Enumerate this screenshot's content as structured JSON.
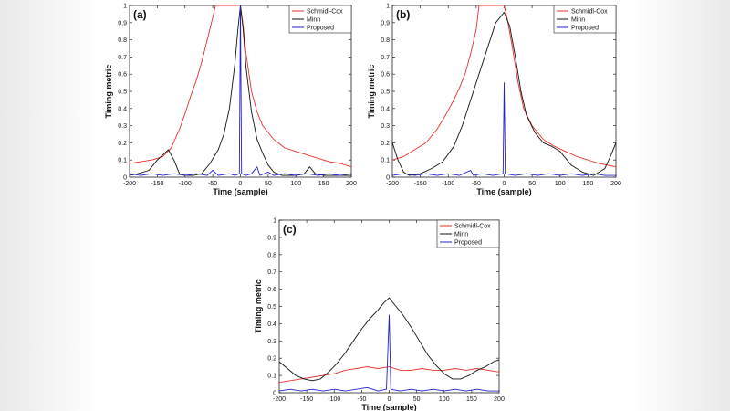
{
  "chart_data": [
    {
      "type": "line",
      "panel_label": "(a)",
      "xlabel": "Time (sample)",
      "ylabel": "Timing metric",
      "xlim": [
        -200,
        200
      ],
      "ylim": [
        0,
        1
      ],
      "xticks": [
        -200,
        -150,
        -100,
        -50,
        0,
        50,
        100,
        150,
        200
      ],
      "yticks": [
        0,
        0.1,
        0.2,
        0.3,
        0.4,
        0.5,
        0.6,
        0.7,
        0.8,
        0.9,
        1
      ],
      "legend_position": "top-right",
      "series": [
        {
          "name": "Schmidl-Cox",
          "color": "#e8302a",
          "points": [
            [
              -200,
              0.08
            ],
            [
              -180,
              0.09
            ],
            [
              -160,
              0.1
            ],
            [
              -140,
              0.12
            ],
            [
              -125,
              0.17
            ],
            [
              -110,
              0.28
            ],
            [
              -100,
              0.37
            ],
            [
              -90,
              0.47
            ],
            [
              -80,
              0.56
            ],
            [
              -70,
              0.67
            ],
            [
              -60,
              0.8
            ],
            [
              -50,
              0.93
            ],
            [
              -45,
              1.0
            ],
            [
              -40,
              1.0
            ],
            [
              -20,
              1.0
            ],
            [
              -5,
              1.0
            ],
            [
              0,
              1.0
            ],
            [
              5,
              0.88
            ],
            [
              10,
              0.72
            ],
            [
              20,
              0.5
            ],
            [
              30,
              0.38
            ],
            [
              40,
              0.3
            ],
            [
              60,
              0.22
            ],
            [
              80,
              0.17
            ],
            [
              100,
              0.15
            ],
            [
              120,
              0.13
            ],
            [
              140,
              0.11
            ],
            [
              160,
              0.09
            ],
            [
              180,
              0.08
            ],
            [
              200,
              0.06
            ]
          ]
        },
        {
          "name": "Minn",
          "color": "#111111",
          "points": [
            [
              -200,
              0.01
            ],
            [
              -185,
              0.02
            ],
            [
              -165,
              0.04
            ],
            [
              -150,
              0.1
            ],
            [
              -130,
              0.16
            ],
            [
              -120,
              0.1
            ],
            [
              -110,
              0.02
            ],
            [
              -100,
              0.01
            ],
            [
              -85,
              0.01
            ],
            [
              -70,
              0.02
            ],
            [
              -55,
              0.08
            ],
            [
              -40,
              0.16
            ],
            [
              -30,
              0.25
            ],
            [
              -20,
              0.4
            ],
            [
              -10,
              0.66
            ],
            [
              -5,
              0.85
            ],
            [
              0,
              1.0
            ],
            [
              5,
              0.86
            ],
            [
              10,
              0.64
            ],
            [
              20,
              0.38
            ],
            [
              30,
              0.22
            ],
            [
              40,
              0.14
            ],
            [
              50,
              0.07
            ],
            [
              60,
              0.03
            ],
            [
              75,
              0.01
            ],
            [
              100,
              0.01
            ],
            [
              115,
              0.02
            ],
            [
              125,
              0.06
            ],
            [
              135,
              0.02
            ],
            [
              150,
              0.01
            ],
            [
              200,
              0.01
            ]
          ]
        },
        {
          "name": "Proposed",
          "color": "#2222cc",
          "points": [
            [
              -200,
              0.02
            ],
            [
              -180,
              0.01
            ],
            [
              -160,
              0.02
            ],
            [
              -140,
              0.01
            ],
            [
              -120,
              0.02
            ],
            [
              -100,
              0.01
            ],
            [
              -80,
              0.02
            ],
            [
              -60,
              0.01
            ],
            [
              -50,
              0.04
            ],
            [
              -40,
              0.01
            ],
            [
              -20,
              0.02
            ],
            [
              -10,
              0.01
            ],
            [
              -2,
              0.02
            ],
            [
              0,
              1.0
            ],
            [
              2,
              0.02
            ],
            [
              10,
              0.01
            ],
            [
              20,
              0.02
            ],
            [
              30,
              0.06
            ],
            [
              35,
              0.01
            ],
            [
              50,
              0.03
            ],
            [
              60,
              0.01
            ],
            [
              80,
              0.02
            ],
            [
              100,
              0.01
            ],
            [
              120,
              0.02
            ],
            [
              140,
              0.01
            ],
            [
              160,
              0.02
            ],
            [
              180,
              0.01
            ],
            [
              200,
              0.02
            ]
          ]
        }
      ]
    },
    {
      "type": "line",
      "panel_label": "(b)",
      "xlabel": "Time (sample)",
      "ylabel": "Timing metric",
      "xlim": [
        -200,
        200
      ],
      "ylim": [
        0,
        1
      ],
      "xticks": [
        -200,
        -150,
        -100,
        -50,
        0,
        50,
        100,
        150,
        200
      ],
      "yticks": [
        0,
        0.1,
        0.2,
        0.3,
        0.4,
        0.5,
        0.6,
        0.7,
        0.8,
        0.9,
        1
      ],
      "legend_position": "top-right",
      "series": [
        {
          "name": "Schmidl-Cox",
          "color": "#e8302a",
          "points": [
            [
              -200,
              0.1
            ],
            [
              -180,
              0.12
            ],
            [
              -160,
              0.16
            ],
            [
              -140,
              0.2
            ],
            [
              -120,
              0.28
            ],
            [
              -105,
              0.36
            ],
            [
              -90,
              0.45
            ],
            [
              -80,
              0.52
            ],
            [
              -70,
              0.6
            ],
            [
              -60,
              0.72
            ],
            [
              -50,
              0.86
            ],
            [
              -45,
              1.0
            ],
            [
              -40,
              1.0
            ],
            [
              -20,
              1.0
            ],
            [
              0,
              1.0
            ],
            [
              5,
              0.93
            ],
            [
              15,
              0.75
            ],
            [
              25,
              0.55
            ],
            [
              35,
              0.4
            ],
            [
              50,
              0.3
            ],
            [
              70,
              0.22
            ],
            [
              90,
              0.18
            ],
            [
              110,
              0.15
            ],
            [
              130,
              0.12
            ],
            [
              150,
              0.1
            ],
            [
              170,
              0.08
            ],
            [
              200,
              0.06
            ]
          ]
        },
        {
          "name": "Minn",
          "color": "#111111",
          "points": [
            [
              -200,
              0.2
            ],
            [
              -190,
              0.1
            ],
            [
              -180,
              0.03
            ],
            [
              -170,
              0.01
            ],
            [
              -150,
              0.02
            ],
            [
              -130,
              0.05
            ],
            [
              -110,
              0.09
            ],
            [
              -90,
              0.18
            ],
            [
              -75,
              0.3
            ],
            [
              -60,
              0.45
            ],
            [
              -45,
              0.6
            ],
            [
              -30,
              0.75
            ],
            [
              -15,
              0.9
            ],
            [
              0,
              0.96
            ],
            [
              10,
              0.88
            ],
            [
              20,
              0.7
            ],
            [
              30,
              0.5
            ],
            [
              40,
              0.36
            ],
            [
              55,
              0.26
            ],
            [
              70,
              0.2
            ],
            [
              85,
              0.18
            ],
            [
              100,
              0.15
            ],
            [
              120,
              0.07
            ],
            [
              140,
              0.03
            ],
            [
              160,
              0.01
            ],
            [
              180,
              0.05
            ],
            [
              190,
              0.12
            ],
            [
              200,
              0.2
            ]
          ]
        },
        {
          "name": "Proposed",
          "color": "#2222cc",
          "points": [
            [
              -200,
              0.01
            ],
            [
              -180,
              0.02
            ],
            [
              -160,
              0.01
            ],
            [
              -140,
              0.02
            ],
            [
              -120,
              0.01
            ],
            [
              -100,
              0.02
            ],
            [
              -80,
              0.01
            ],
            [
              -60,
              0.04
            ],
            [
              -55,
              0.01
            ],
            [
              -40,
              0.02
            ],
            [
              -20,
              0.01
            ],
            [
              -2,
              0.02
            ],
            [
              0,
              0.55
            ],
            [
              2,
              0.02
            ],
            [
              20,
              0.01
            ],
            [
              40,
              0.02
            ],
            [
              60,
              0.01
            ],
            [
              80,
              0.02
            ],
            [
              100,
              0.01
            ],
            [
              120,
              0.02
            ],
            [
              140,
              0.01
            ],
            [
              160,
              0.02
            ],
            [
              180,
              0.01
            ],
            [
              200,
              0.01
            ]
          ]
        }
      ]
    },
    {
      "type": "line",
      "panel_label": "(c)",
      "xlabel": "Time (sample)",
      "ylabel": "Timing metric",
      "xlim": [
        -200,
        200
      ],
      "ylim": [
        0,
        1
      ],
      "xticks": [
        -200,
        -150,
        -100,
        -50,
        0,
        50,
        100,
        150,
        200
      ],
      "yticks": [
        0,
        0.1,
        0.2,
        0.3,
        0.4,
        0.5,
        0.6,
        0.7,
        0.8,
        0.9,
        1
      ],
      "legend_position": "top-right",
      "series": [
        {
          "name": "Schmidl-Cox",
          "color": "#e8302a",
          "points": [
            [
              -200,
              0.06
            ],
            [
              -180,
              0.07
            ],
            [
              -160,
              0.08
            ],
            [
              -140,
              0.09
            ],
            [
              -120,
              0.1
            ],
            [
              -100,
              0.11
            ],
            [
              -80,
              0.13
            ],
            [
              -60,
              0.14
            ],
            [
              -40,
              0.15
            ],
            [
              -20,
              0.14
            ],
            [
              0,
              0.15
            ],
            [
              20,
              0.13
            ],
            [
              40,
              0.13
            ],
            [
              60,
              0.14
            ],
            [
              80,
              0.13
            ],
            [
              100,
              0.13
            ],
            [
              120,
              0.14
            ],
            [
              140,
              0.13
            ],
            [
              160,
              0.14
            ],
            [
              180,
              0.13
            ],
            [
              200,
              0.12
            ]
          ]
        },
        {
          "name": "Minn",
          "color": "#111111",
          "points": [
            [
              -200,
              0.18
            ],
            [
              -185,
              0.14
            ],
            [
              -170,
              0.1
            ],
            [
              -155,
              0.08
            ],
            [
              -140,
              0.07
            ],
            [
              -125,
              0.08
            ],
            [
              -110,
              0.12
            ],
            [
              -95,
              0.17
            ],
            [
              -80,
              0.23
            ],
            [
              -65,
              0.3
            ],
            [
              -50,
              0.37
            ],
            [
              -35,
              0.43
            ],
            [
              -20,
              0.48
            ],
            [
              -10,
              0.52
            ],
            [
              0,
              0.55
            ],
            [
              10,
              0.51
            ],
            [
              25,
              0.45
            ],
            [
              40,
              0.38
            ],
            [
              55,
              0.3
            ],
            [
              70,
              0.22
            ],
            [
              85,
              0.16
            ],
            [
              100,
              0.11
            ],
            [
              115,
              0.08
            ],
            [
              130,
              0.08
            ],
            [
              145,
              0.1
            ],
            [
              160,
              0.13
            ],
            [
              175,
              0.15
            ],
            [
              190,
              0.18
            ],
            [
              200,
              0.19
            ]
          ]
        },
        {
          "name": "Proposed",
          "color": "#2222cc",
          "points": [
            [
              -200,
              0.01
            ],
            [
              -180,
              0.02
            ],
            [
              -160,
              0.01
            ],
            [
              -140,
              0.02
            ],
            [
              -120,
              0.01
            ],
            [
              -100,
              0.02
            ],
            [
              -80,
              0.01
            ],
            [
              -60,
              0.02
            ],
            [
              -40,
              0.03
            ],
            [
              -20,
              0.01
            ],
            [
              -5,
              0.02
            ],
            [
              0,
              0.45
            ],
            [
              3,
              0.02
            ],
            [
              20,
              0.01
            ],
            [
              40,
              0.02
            ],
            [
              60,
              0.01
            ],
            [
              80,
              0.02
            ],
            [
              100,
              0.01
            ],
            [
              120,
              0.02
            ],
            [
              140,
              0.01
            ],
            [
              160,
              0.02
            ],
            [
              180,
              0.01
            ],
            [
              200,
              0.01
            ]
          ]
        }
      ]
    }
  ]
}
